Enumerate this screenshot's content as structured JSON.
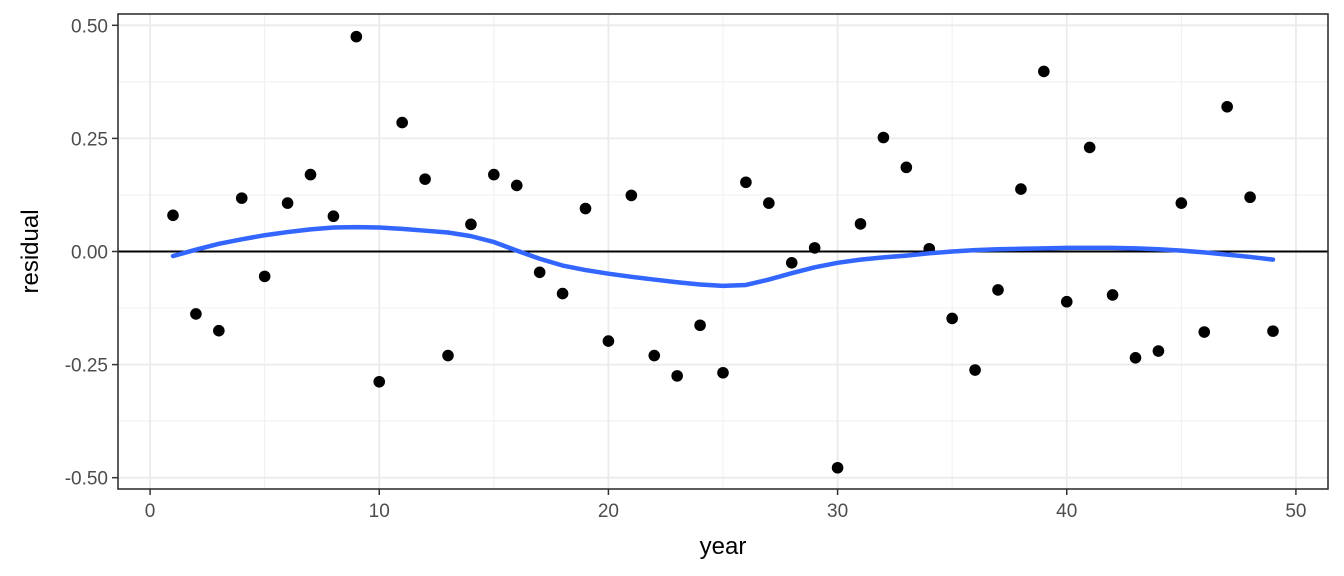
{
  "chart_data": {
    "type": "scatter",
    "title": "",
    "xlabel": "year",
    "ylabel": "residual",
    "xlim": [
      -1.4,
      51.4
    ],
    "ylim": [
      -0.525,
      0.525
    ],
    "x_ticks": [
      0,
      10,
      20,
      30,
      40,
      50
    ],
    "x_tick_labels": [
      "0",
      "10",
      "20",
      "30",
      "40",
      "50"
    ],
    "y_ticks": [
      -0.5,
      -0.25,
      0,
      0.25,
      0.5
    ],
    "y_tick_labels": [
      "-0.50",
      "-0.25",
      "0.00",
      "0.25",
      "0.50"
    ],
    "grid": true,
    "reference_line_y": 0,
    "points": {
      "x": [
        1,
        2,
        3,
        4,
        5,
        6,
        7,
        8,
        9,
        10,
        11,
        12,
        13,
        14,
        15,
        16,
        17,
        18,
        19,
        20,
        21,
        22,
        23,
        24,
        25,
        26,
        27,
        28,
        29,
        30,
        31,
        32,
        33,
        34,
        35,
        36,
        37,
        38,
        39,
        40,
        41,
        42,
        43,
        44,
        45,
        46,
        47,
        48,
        49
      ],
      "y": [
        0.08,
        -0.138,
        -0.175,
        0.118,
        -0.055,
        0.107,
        0.17,
        0.078,
        0.475,
        -0.288,
        0.285,
        0.16,
        -0.23,
        0.06,
        0.17,
        0.146,
        -0.046,
        -0.093,
        0.095,
        -0.198,
        0.124,
        -0.23,
        -0.275,
        -0.163,
        -0.268,
        0.153,
        0.107,
        -0.025,
        0.008,
        -0.478,
        0.061,
        0.252,
        0.186,
        0.006,
        -0.148,
        -0.262,
        -0.085,
        0.138,
        0.398,
        -0.111,
        0.23,
        -0.096,
        -0.235,
        -0.22,
        0.107,
        -0.178,
        0.32,
        0.12,
        -0.176
      ],
      "color": "#000000"
    },
    "smooth": {
      "x": [
        1,
        2,
        3,
        4,
        5,
        6,
        7,
        8,
        9,
        10,
        11,
        12,
        13,
        14,
        15,
        16,
        17,
        18,
        19,
        20,
        21,
        22,
        23,
        24,
        25,
        26,
        27,
        28,
        29,
        30,
        31,
        32,
        33,
        34,
        35,
        36,
        37,
        38,
        39,
        40,
        41,
        42,
        43,
        44,
        45,
        46,
        47,
        48,
        49
      ],
      "y": [
        -0.01,
        0.004,
        0.017,
        0.027,
        0.036,
        0.043,
        0.049,
        0.053,
        0.054,
        0.053,
        0.05,
        0.046,
        0.042,
        0.034,
        0.021,
        0.002,
        -0.016,
        -0.031,
        -0.041,
        -0.049,
        -0.056,
        -0.062,
        -0.068,
        -0.073,
        -0.076,
        -0.074,
        -0.062,
        -0.048,
        -0.035,
        -0.025,
        -0.018,
        -0.013,
        -0.009,
        -0.004,
        0,
        0.003,
        0.005,
        0.006,
        0.007,
        0.008,
        0.008,
        0.008,
        0.007,
        0.005,
        0.002,
        -0.002,
        -0.007,
        -0.012,
        -0.018
      ],
      "color": "#3366FF"
    }
  }
}
